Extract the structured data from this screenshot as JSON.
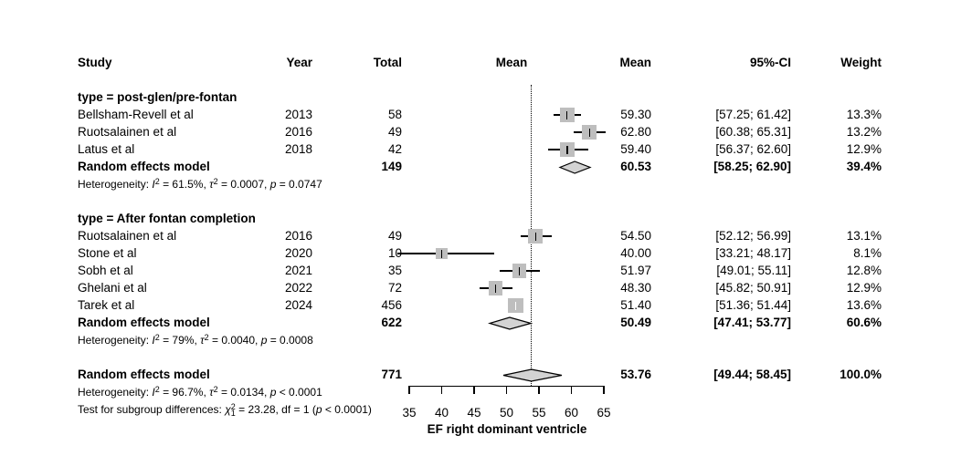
{
  "colors": {
    "marker_square": "#bebebe",
    "diamond_fill": "#d3d3d3",
    "line": "#000000",
    "background": "#ffffff"
  },
  "chart_data": {
    "type": "forest",
    "x_axis": {
      "label": "EF right dominant ventricle",
      "ticks": [
        35,
        40,
        45,
        50,
        55,
        60,
        65
      ],
      "range": [
        35,
        65
      ]
    },
    "reference_value": 53.76,
    "grid": false,
    "columns": {
      "study": "Study",
      "year": "Year",
      "total": "Total",
      "plot": "Mean",
      "mean": "Mean",
      "ci": "95%-CI",
      "weight": "Weight"
    },
    "groups": [
      {
        "label": "type = post-glen/pre-fontan",
        "studies": [
          {
            "study": "Bellsham-Revell et al",
            "year": "2013",
            "total": "58",
            "mean": 59.3,
            "ci_low": 57.25,
            "ci_high": 61.42,
            "mean_label": "59.30",
            "ci_label": "[57.25; 61.42]",
            "weight": 13.3,
            "weight_label": "13.3%"
          },
          {
            "study": "Ruotsalainen et al",
            "year": "2016",
            "total": "49",
            "mean": 62.8,
            "ci_low": 60.38,
            "ci_high": 65.31,
            "mean_label": "62.80",
            "ci_label": "[60.38; 65.31]",
            "weight": 13.2,
            "weight_label": "13.2%"
          },
          {
            "study": "Latus et al",
            "year": "2018",
            "total": "42",
            "mean": 59.4,
            "ci_low": 56.37,
            "ci_high": 62.6,
            "mean_label": "59.40",
            "ci_label": "[56.37; 62.60]",
            "weight": 12.9,
            "weight_label": "12.9%"
          }
        ],
        "pooled": {
          "study": "Random effects model",
          "total": "149",
          "mean": 60.53,
          "ci_low": 58.25,
          "ci_high": 62.9,
          "mean_label": "60.53",
          "ci_label": "[58.25; 62.90]",
          "weight_label": "39.4%"
        },
        "heterogeneity": [
          "Heterogeneity: ",
          [
            "I",
            "i"
          ],
          [
            "2",
            "sup"
          ],
          " = 61.5%, ",
          [
            "τ",
            "i"
          ],
          [
            "2",
            "sup"
          ],
          " = 0.0007, ",
          [
            "p",
            "i"
          ],
          " = 0.0747"
        ]
      },
      {
        "label": "type = After fontan completion",
        "studies": [
          {
            "study": "Ruotsalainen et al",
            "year": "2016",
            "total": "49",
            "mean": 54.5,
            "ci_low": 52.12,
            "ci_high": 56.99,
            "mean_label": "54.50",
            "ci_label": "[52.12; 56.99]",
            "weight": 13.1,
            "weight_label": "13.1%"
          },
          {
            "study": "Stone et al",
            "year": "2020",
            "total": "10",
            "mean": 40.0,
            "ci_low": 33.21,
            "ci_high": 48.17,
            "mean_label": "40.00",
            "ci_label": "[33.21; 48.17]",
            "weight": 8.1,
            "weight_label": "8.1%"
          },
          {
            "study": "Sobh et al",
            "year": "2021",
            "total": "35",
            "mean": 51.97,
            "ci_low": 49.01,
            "ci_high": 55.11,
            "mean_label": "51.97",
            "ci_label": "[49.01; 55.11]",
            "weight": 12.8,
            "weight_label": "12.8%"
          },
          {
            "study": "Ghelani et al",
            "year": "2022",
            "total": "72",
            "mean": 48.3,
            "ci_low": 45.82,
            "ci_high": 50.91,
            "mean_label": "48.30",
            "ci_label": "[45.82; 50.91]",
            "weight": 12.9,
            "weight_label": "12.9%"
          },
          {
            "study": "Tarek et al",
            "year": "2024",
            "total": "456",
            "mean": 51.4,
            "ci_low": 51.36,
            "ci_high": 51.44,
            "mean_label": "51.40",
            "ci_label": "[51.36; 51.44]",
            "weight": 13.6,
            "weight_label": "13.6%"
          }
        ],
        "pooled": {
          "study": "Random effects model",
          "total": "622",
          "mean": 50.49,
          "ci_low": 47.41,
          "ci_high": 53.77,
          "mean_label": "50.49",
          "ci_label": "[47.41; 53.77]",
          "weight_label": "60.6%"
        },
        "heterogeneity": [
          "Heterogeneity: ",
          [
            "I",
            "i"
          ],
          [
            "2",
            "sup"
          ],
          " = 79%, ",
          [
            "τ",
            "i"
          ],
          [
            "2",
            "sup"
          ],
          " = 0.0040, ",
          [
            "p",
            "i"
          ],
          " = 0.0008"
        ]
      }
    ],
    "overall": {
      "study": "Random effects model",
      "total": "771",
      "mean": 53.76,
      "ci_low": 49.44,
      "ci_high": 58.45,
      "mean_label": "53.76",
      "ci_label": "[49.44; 58.45]",
      "weight_label": "100.0%",
      "heterogeneity": [
        "Heterogeneity: ",
        [
          "I",
          "i"
        ],
        [
          "2",
          "sup"
        ],
        " = 96.7%, ",
        [
          "τ",
          "i"
        ],
        [
          "2",
          "sup"
        ],
        " = 0.0134, ",
        [
          "p",
          "i"
        ],
        " < 0.0001"
      ],
      "subgroup_test": [
        "Test for subgroup differences: ",
        [
          "χ",
          "i"
        ],
        [
          "2",
          "sup"
        ],
        [
          "1",
          "sub",
          "back"
        ],
        " = 23.28, df = 1 (",
        [
          "p",
          "i"
        ],
        " < 0.0001)"
      ]
    }
  }
}
